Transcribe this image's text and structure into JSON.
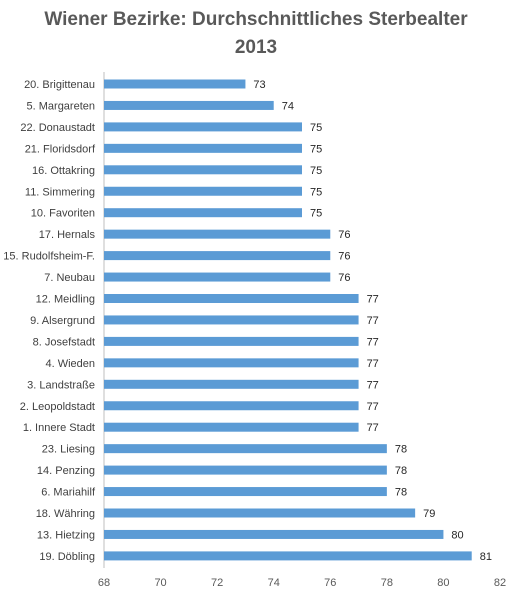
{
  "chart_data": {
    "type": "bar",
    "orientation": "horizontal",
    "title": "Wiener Bezirke: Durchschnittliches Sterbealter",
    "subtitle": "2013",
    "categories": [
      "20. Brigittenau",
      "5. Margareten",
      "22. Donaustadt",
      "21. Floridsdorf",
      "16. Ottakring",
      "11. Simmering",
      "10. Favoriten",
      "17. Hernals",
      "15. Rudolfsheim-F.",
      "7. Neubau",
      "12. Meidling",
      "9. Alsergrund",
      "8. Josefstadt",
      "4. Wieden",
      "3. Landstraße",
      "2. Leopoldstadt",
      "1. Innere Stadt",
      "23. Liesing",
      "14. Penzing",
      "6. Mariahilf",
      "18. Währing",
      "13. Hietzing",
      "19. Döbling"
    ],
    "values": [
      73,
      74,
      75,
      75,
      75,
      75,
      75,
      76,
      76,
      76,
      77,
      77,
      77,
      77,
      77,
      77,
      77,
      78,
      78,
      78,
      79,
      80,
      81
    ],
    "xlim": [
      68,
      82
    ],
    "xticks": [
      68,
      70,
      72,
      74,
      76,
      78,
      80,
      82
    ],
    "xlabel": "",
    "ylabel": "",
    "bar_color": "#5B9BD5",
    "grid": false,
    "data_labels": true
  }
}
